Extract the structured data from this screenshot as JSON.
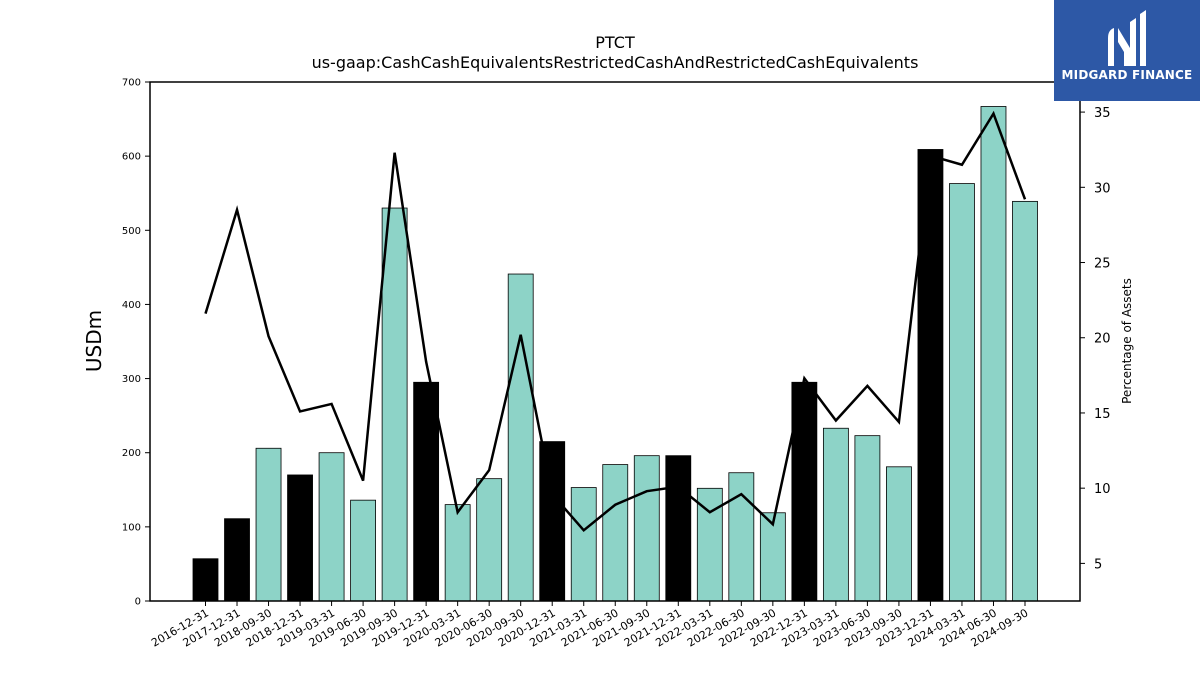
{
  "chart_data": {
    "type": "bar",
    "title": "PTCT",
    "subtitle": "us-gaap:CashCashEquivalentsRestrictedCashAndRestrictedCashEquivalents",
    "ylabel": "USDm",
    "y2label": "Percentage of Assets",
    "ylim": [
      0,
      700
    ],
    "y2lim": [
      2.5,
      37
    ],
    "yticks": [
      0,
      100,
      200,
      300,
      400,
      500,
      600,
      700
    ],
    "y2ticks": [
      5,
      10,
      15,
      20,
      25,
      30,
      35
    ],
    "categories": [
      "2016-12-31",
      "2017-12-31",
      "2018-09-30",
      "2018-12-31",
      "2019-03-31",
      "2019-06-30",
      "2019-09-30",
      "2019-12-31",
      "2020-03-31",
      "2020-06-30",
      "2020-09-30",
      "2020-12-31",
      "2021-03-31",
      "2021-06-30",
      "2021-09-30",
      "2021-12-31",
      "2022-03-31",
      "2022-06-30",
      "2022-09-30",
      "2022-12-31",
      "2023-03-31",
      "2023-06-30",
      "2023-09-30",
      "2023-12-31",
      "2024-03-31",
      "2024-06-30",
      "2024-09-30"
    ],
    "series": [
      {
        "kind": "bar",
        "values": [
          57,
          111,
          206,
          170,
          200,
          136,
          530,
          295,
          130,
          165,
          441,
          215,
          153,
          184,
          196,
          196,
          152,
          173,
          119,
          295,
          233,
          223,
          181,
          609,
          563,
          667,
          539
        ],
        "colors": [
          "#000000",
          "#000000",
          "#8dd3c7",
          "#000000",
          "#8dd3c7",
          "#8dd3c7",
          "#8dd3c7",
          "#000000",
          "#8dd3c7",
          "#8dd3c7",
          "#8dd3c7",
          "#000000",
          "#8dd3c7",
          "#8dd3c7",
          "#8dd3c7",
          "#000000",
          "#8dd3c7",
          "#8dd3c7",
          "#8dd3c7",
          "#000000",
          "#8dd3c7",
          "#8dd3c7",
          "#8dd3c7",
          "#000000",
          "#8dd3c7",
          "#8dd3c7",
          "#8dd3c7"
        ]
      },
      {
        "kind": "line",
        "axis": "right",
        "color": "#000000",
        "values": [
          21.6,
          28.5,
          20.1,
          15.1,
          15.6,
          10.5,
          32.3,
          18.4,
          8.4,
          11.2,
          20.2,
          9.6,
          7.2,
          8.9,
          9.8,
          10.1,
          8.4,
          9.6,
          7.6,
          17.3,
          14.5,
          16.8,
          14.4,
          32.1,
          31.5,
          34.9,
          29.2
        ]
      }
    ],
    "grid": false
  },
  "logo": {
    "text": "MIDGARD FINANCE",
    "bg": "#2d58a6",
    "fg": "#ffffff"
  }
}
